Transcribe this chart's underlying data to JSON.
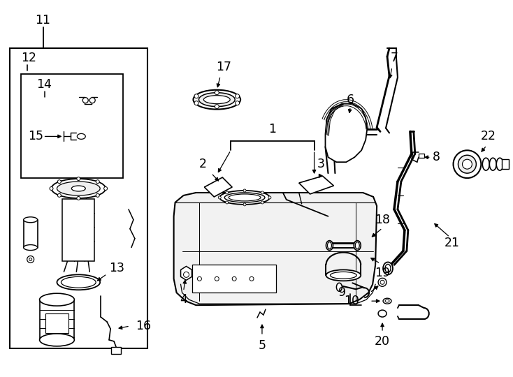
{
  "bg_color": "#ffffff",
  "line_color": "#000000",
  "fig_width": 7.34,
  "fig_height": 5.4,
  "dpi": 100,
  "lw": 1.4,
  "label_fontsize": 12.5
}
